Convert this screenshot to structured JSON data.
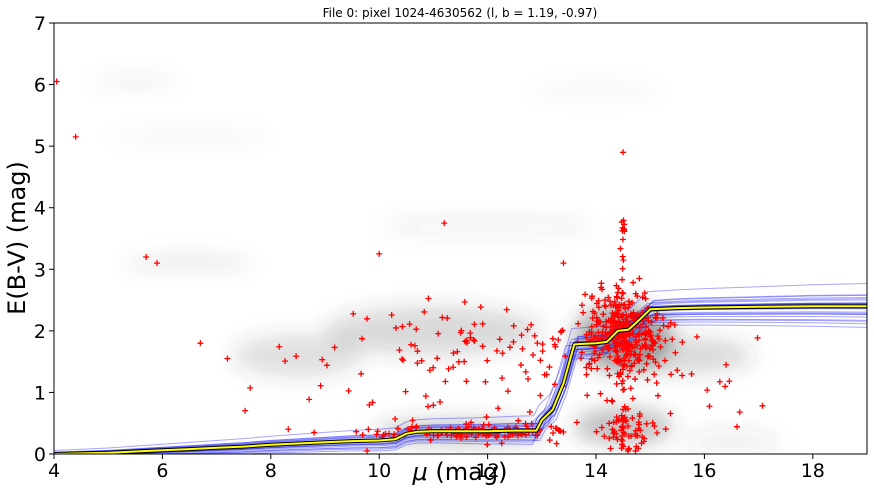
{
  "chart_data": {
    "type": "scatter",
    "title": "File 0: pixel 1024-4630562 (l, b = 1.19, -0.97)",
    "xlabel_symbol": "μ",
    "xlabel_unit": " (mag)",
    "ylabel": "E(B-V) (mag)",
    "xlim": [
      4,
      19
    ],
    "ylim": [
      0,
      7
    ],
    "xticks": [
      "4",
      "6",
      "8",
      "10",
      "12",
      "14",
      "16",
      "18"
    ],
    "yticks": [
      "0",
      "1",
      "2",
      "3",
      "4",
      "5",
      "6",
      "7"
    ],
    "grid": false,
    "legend": "none",
    "colors": {
      "stars": "#ff0000",
      "samples": "#0000ff",
      "best_fit": "#ffff00",
      "best_fit_outline": "#000000",
      "density": "#404040"
    },
    "best_fit_profile": {
      "x": [
        4.0,
        4.5,
        5.0,
        5.5,
        6.0,
        6.5,
        7.0,
        7.5,
        8.0,
        8.5,
        9.0,
        9.5,
        10.0,
        10.3,
        10.5,
        10.7,
        11.0,
        11.5,
        12.0,
        12.5,
        12.9,
        13.0,
        13.2,
        13.4,
        13.6,
        13.8,
        14.0,
        14.2,
        14.4,
        14.6,
        14.8,
        15.0,
        15.5,
        16.0,
        17.0,
        18.0,
        19.0
      ],
      "y": [
        0.0,
        0.01,
        0.02,
        0.04,
        0.06,
        0.08,
        0.1,
        0.12,
        0.15,
        0.17,
        0.19,
        0.21,
        0.22,
        0.24,
        0.33,
        0.36,
        0.37,
        0.37,
        0.37,
        0.38,
        0.38,
        0.55,
        0.72,
        1.15,
        1.78,
        1.79,
        1.8,
        1.82,
        2.0,
        2.02,
        2.18,
        2.35,
        2.37,
        2.38,
        2.39,
        2.4,
        2.4
      ]
    },
    "sample_band": {
      "x": [
        4.0,
        15.0,
        19.0
      ],
      "ymin": [
        0.0,
        2.3,
        2.37
      ],
      "ymax": [
        0.05,
        2.5,
        2.63
      ]
    },
    "density_blobs": [
      {
        "x": 14.5,
        "y": 1.9,
        "sx": 0.9,
        "sy": 0.55,
        "w": 0.85
      },
      {
        "x": 14.5,
        "y": 0.45,
        "sx": 0.9,
        "sy": 0.3,
        "w": 0.6
      },
      {
        "x": 11.5,
        "y": 0.35,
        "sx": 1.6,
        "sy": 0.2,
        "w": 0.55
      },
      {
        "x": 11.0,
        "y": 2.0,
        "sx": 2.0,
        "sy": 0.4,
        "w": 0.35
      },
      {
        "x": 8.5,
        "y": 1.6,
        "sx": 1.2,
        "sy": 0.35,
        "w": 0.3
      },
      {
        "x": 6.5,
        "y": 3.1,
        "sx": 1.2,
        "sy": 0.1,
        "w": 0.2
      },
      {
        "x": 5.5,
        "y": 6.05,
        "sx": 0.8,
        "sy": 0.06,
        "w": 0.2
      },
      {
        "x": 6.5,
        "y": 5.15,
        "sx": 1.5,
        "sy": 0.06,
        "w": 0.15
      },
      {
        "x": 14.0,
        "y": 5.9,
        "sx": 1.2,
        "sy": 0.08,
        "w": 0.12
      },
      {
        "x": 12.0,
        "y": 3.7,
        "sx": 2.0,
        "sy": 0.15,
        "w": 0.12
      },
      {
        "x": 15.5,
        "y": 1.6,
        "sx": 1.4,
        "sy": 0.3,
        "w": 0.35
      },
      {
        "x": 16.5,
        "y": 0.2,
        "sx": 0.9,
        "sy": 0.2,
        "w": 0.15
      }
    ],
    "star_clusters": [
      {
        "x": 14.5,
        "y": 1.95,
        "sx": 0.35,
        "sy": 0.35,
        "n": 320
      },
      {
        "x": 14.55,
        "y": 0.4,
        "sx": 0.25,
        "sy": 0.2,
        "n": 60
      },
      {
        "x": 11.8,
        "y": 0.36,
        "sx": 1.0,
        "sy": 0.06,
        "n": 120
      },
      {
        "x": 12.5,
        "y": 1.9,
        "sx": 1.4,
        "sy": 0.3,
        "n": 90
      },
      {
        "x": 9.0,
        "y": 1.5,
        "sx": 1.0,
        "sy": 0.4,
        "n": 14
      },
      {
        "x": 11.5,
        "y": 1.0,
        "sx": 1.5,
        "sy": 0.5,
        "n": 40
      },
      {
        "x": 15.7,
        "y": 1.0,
        "sx": 1.0,
        "sy": 0.5,
        "n": 20
      }
    ],
    "star_column": {
      "x": 14.5,
      "y_from": 0.0,
      "y_to": 4.2,
      "n": 40
    },
    "isolated_stars": [
      {
        "x": 4.05,
        "y": 6.05
      },
      {
        "x": 4.4,
        "y": 5.15
      },
      {
        "x": 5.7,
        "y": 3.2
      },
      {
        "x": 5.9,
        "y": 3.1
      },
      {
        "x": 10.0,
        "y": 3.25
      },
      {
        "x": 11.2,
        "y": 3.75
      },
      {
        "x": 14.5,
        "y": 4.9
      },
      {
        "x": 6.7,
        "y": 1.8
      },
      {
        "x": 7.2,
        "y": 1.55
      },
      {
        "x": 13.4,
        "y": 3.1
      },
      {
        "x": 14.8,
        "y": 2.85
      },
      {
        "x": 16.4,
        "y": 1.45
      },
      {
        "x": 9.8,
        "y": 0.4
      },
      {
        "x": 8.8,
        "y": 0.35
      }
    ]
  }
}
